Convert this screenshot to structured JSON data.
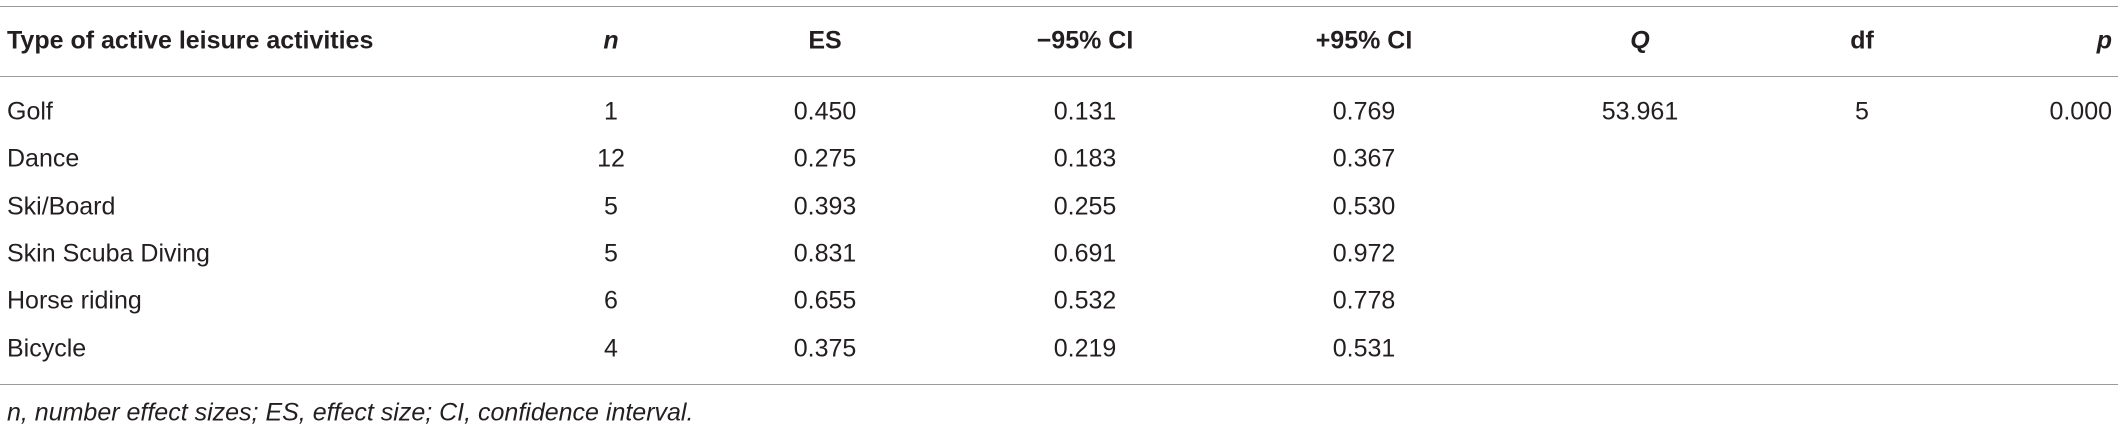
{
  "table": {
    "columns": [
      "Type of active leisure activities",
      "n",
      "ES",
      "−95% CI",
      "+95% CI",
      "Q",
      "df",
      "p"
    ],
    "rows": [
      [
        "Golf",
        "1",
        "0.450",
        "0.131",
        "0.769",
        "53.961",
        "5",
        "0.000"
      ],
      [
        "Dance",
        "12",
        "0.275",
        "0.183",
        "0.367"
      ],
      [
        "Ski/Board",
        "5",
        "0.393",
        "0.255",
        "0.530"
      ],
      [
        "Skin Scuba Diving",
        "5",
        "0.831",
        "0.691",
        "0.972"
      ],
      [
        "Horse riding",
        "6",
        "0.655",
        "0.532",
        "0.778"
      ],
      [
        "Bicycle",
        "4",
        "0.375",
        "0.219",
        "0.531"
      ]
    ],
    "footnote": "n, number effect sizes; ES, effect size; CI, confidence interval."
  }
}
